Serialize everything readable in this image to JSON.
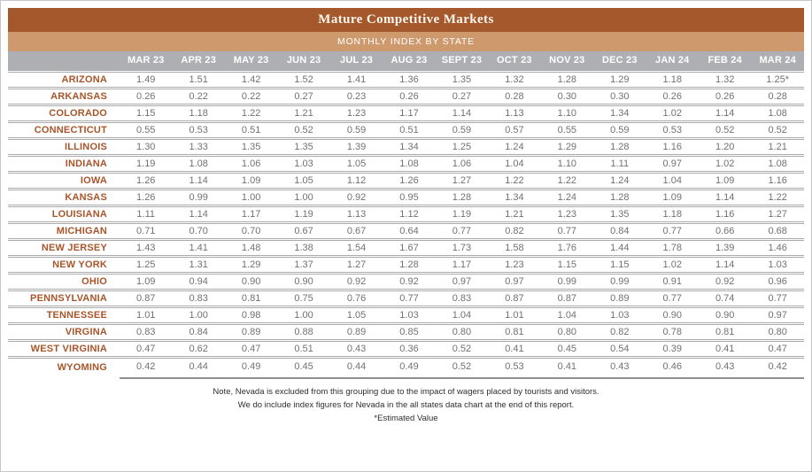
{
  "header": {
    "title": "Mature Competitive Markets",
    "subtitle": "MONTHLY INDEX BY STATE"
  },
  "table": {
    "columns": [
      "MAR 23",
      "APR 23",
      "MAY 23",
      "JUN 23",
      "JUL 23",
      "AUG 23",
      "SEPT 23",
      "OCT 23",
      "NOV 23",
      "DEC 23",
      "JAN 24",
      "FEB 24",
      "MAR 24"
    ],
    "rows": [
      {
        "state": "ARIZONA",
        "values": [
          "1.49",
          "1.51",
          "1.42",
          "1.52",
          "1.41",
          "1.36",
          "1.35",
          "1.32",
          "1.28",
          "1.29",
          "1.18",
          "1.32",
          "1.25*"
        ]
      },
      {
        "state": "ARKANSAS",
        "values": [
          "0.26",
          "0.22",
          "0.22",
          "0.27",
          "0.23",
          "0.26",
          "0.27",
          "0.28",
          "0.30",
          "0.30",
          "0.26",
          "0.26",
          "0.28"
        ]
      },
      {
        "state": "COLORADO",
        "values": [
          "1.15",
          "1.18",
          "1.22",
          "1.21",
          "1.23",
          "1.17",
          "1.14",
          "1.13",
          "1.10",
          "1.34",
          "1.02",
          "1.14",
          "1.08"
        ]
      },
      {
        "state": "CONNECTICUT",
        "values": [
          "0.55",
          "0.53",
          "0.51",
          "0.52",
          "0.59",
          "0.51",
          "0.59",
          "0.57",
          "0.55",
          "0.59",
          "0.53",
          "0.52",
          "0.52"
        ]
      },
      {
        "state": "ILLINOIS",
        "values": [
          "1.30",
          "1.33",
          "1.35",
          "1.35",
          "1.39",
          "1.34",
          "1.25",
          "1.24",
          "1.29",
          "1.28",
          "1.16",
          "1.20",
          "1.21"
        ]
      },
      {
        "state": "INDIANA",
        "values": [
          "1.19",
          "1.08",
          "1.06",
          "1.03",
          "1.05",
          "1.08",
          "1.06",
          "1.04",
          "1.10",
          "1.11",
          "0.97",
          "1.02",
          "1.08"
        ]
      },
      {
        "state": "IOWA",
        "values": [
          "1.26",
          "1.14",
          "1.09",
          "1.05",
          "1.12",
          "1.26",
          "1.27",
          "1.22",
          "1.22",
          "1.24",
          "1.04",
          "1.09",
          "1.16"
        ]
      },
      {
        "state": "KANSAS",
        "values": [
          "1.26",
          "0.99",
          "1.00",
          "1.00",
          "0.92",
          "0.95",
          "1.28",
          "1.34",
          "1.24",
          "1.28",
          "1.09",
          "1.14",
          "1.22"
        ]
      },
      {
        "state": "LOUISIANA",
        "values": [
          "1.11",
          "1.14",
          "1.17",
          "1.19",
          "1.13",
          "1.12",
          "1.19",
          "1.21",
          "1.23",
          "1.35",
          "1.18",
          "1.16",
          "1.27"
        ]
      },
      {
        "state": "MICHIGAN",
        "values": [
          "0.71",
          "0.70",
          "0.70",
          "0.67",
          "0.67",
          "0.64",
          "0.77",
          "0.82",
          "0.77",
          "0.84",
          "0.77",
          "0.66",
          "0.68"
        ]
      },
      {
        "state": "NEW JERSEY",
        "values": [
          "1.43",
          "1.41",
          "1.48",
          "1.38",
          "1.54",
          "1.67",
          "1.73",
          "1.58",
          "1.76",
          "1.44",
          "1.78",
          "1.39",
          "1.46"
        ]
      },
      {
        "state": "NEW YORK",
        "values": [
          "1.25",
          "1.31",
          "1.29",
          "1.37",
          "1.27",
          "1.28",
          "1.17",
          "1.23",
          "1.15",
          "1.15",
          "1.02",
          "1.14",
          "1.03"
        ]
      },
      {
        "state": "OHIO",
        "values": [
          "1.09",
          "0.94",
          "0.90",
          "0.90",
          "0.92",
          "0.92",
          "0.97",
          "0.97",
          "0.99",
          "0.99",
          "0.91",
          "0.92",
          "0.96"
        ]
      },
      {
        "state": "PENNSYLVANIA",
        "values": [
          "0.87",
          "0.83",
          "0.81",
          "0.75",
          "0.76",
          "0.77",
          "0.83",
          "0.87",
          "0.87",
          "0.89",
          "0.77",
          "0.74",
          "0.77"
        ]
      },
      {
        "state": "TENNESSEE",
        "values": [
          "1.01",
          "1.00",
          "0.98",
          "1.00",
          "1.05",
          "1.03",
          "1.04",
          "1.01",
          "1.04",
          "1.03",
          "0.90",
          "0.90",
          "0.97"
        ]
      },
      {
        "state": "VIRGINA",
        "values": [
          "0.83",
          "0.84",
          "0.89",
          "0.88",
          "0.89",
          "0.85",
          "0.80",
          "0.81",
          "0.80",
          "0.82",
          "0.78",
          "0.81",
          "0.80"
        ]
      },
      {
        "state": "WEST VIRGINIA",
        "values": [
          "0.47",
          "0.62",
          "0.47",
          "0.51",
          "0.43",
          "0.36",
          "0.52",
          "0.41",
          "0.45",
          "0.54",
          "0.39",
          "0.41",
          "0.47"
        ]
      },
      {
        "state": "WYOMING",
        "values": [
          "0.42",
          "0.44",
          "0.49",
          "0.45",
          "0.44",
          "0.49",
          "0.52",
          "0.53",
          "0.41",
          "0.43",
          "0.46",
          "0.43",
          "0.42"
        ]
      }
    ]
  },
  "footnotes": [
    "Note, Nevada is excluded from this grouping due to the impact of wagers placed by tourists and visitors.",
    "We do include index figures for Nevada in the all states data chart at the end of this report.",
    "*Estimated Value"
  ],
  "colors": {
    "title_band": "#A5582B",
    "subtitle_band": "#CE9A6D",
    "header_band": "#AEAFB2",
    "state_label": "#A8552A",
    "value_text": "#707174"
  }
}
